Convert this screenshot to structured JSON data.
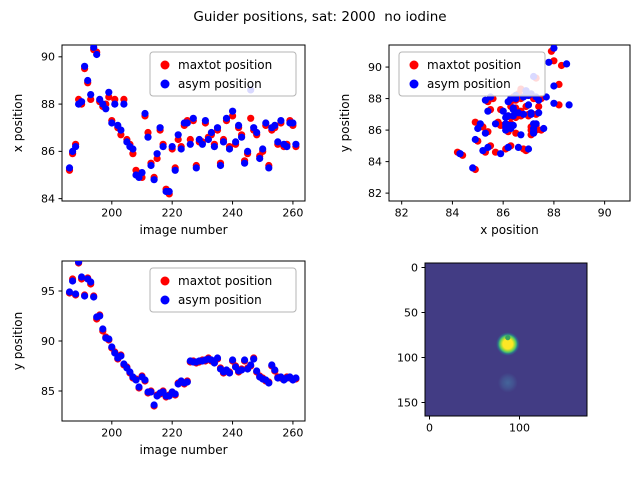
{
  "title": "Guider positions, sat: 2000  no iodine",
  "legend": {
    "maxtot_label": "maxtot position",
    "asym_label": "asym position"
  },
  "colors": {
    "maxtot": "#ff0000",
    "asym": "#0000ff",
    "frame": "#000000",
    "legend_border": "#b4b4b4",
    "image_bg": "#423c84",
    "blob_core": "#fde725",
    "blob_mid": "#a0da39",
    "blob_ring": "#4ac16d",
    "blob_halo": "#2a788e",
    "blob_faint": "#44699d",
    "blob_dot": "#2f9e62"
  },
  "chart_data": {
    "samples": {
      "img": [
        186,
        187,
        188,
        189,
        190,
        191,
        192,
        193,
        194,
        195,
        196,
        197,
        198,
        199,
        200,
        201,
        202,
        203,
        204,
        205,
        206,
        207,
        208,
        209,
        210,
        211,
        212,
        213,
        214,
        215,
        216,
        217,
        218,
        219,
        220,
        221,
        222,
        223,
        224,
        225,
        226,
        227,
        228,
        229,
        230,
        231,
        232,
        233,
        234,
        235,
        236,
        237,
        238,
        239,
        240,
        241,
        242,
        243,
        244,
        245,
        246,
        247,
        248,
        249,
        250,
        251,
        252,
        253,
        254,
        255,
        256,
        257,
        258,
        259,
        260,
        261
      ],
      "x_max": [
        85.2,
        85.9,
        86.3,
        88.2,
        88.0,
        89.5,
        88.9,
        88.2,
        90.3,
        90.2,
        88.1,
        87.9,
        88.0,
        88.3,
        87.3,
        88.2,
        87.0,
        86.7,
        88.2,
        86.5,
        86.3,
        85.9,
        85.2,
        85.0,
        84.9,
        87.5,
        86.8,
        85.5,
        84.9,
        85.7,
        86.9,
        86.3,
        84.4,
        84.2,
        86.1,
        85.3,
        86.5,
        86.2,
        87.1,
        87.3,
        86.5,
        87.3,
        85.4,
        86.4,
        86.4,
        87.2,
        86.6,
        86.7,
        86.3,
        86.9,
        85.5,
        86.5,
        87.3,
        86.2,
        87.5,
        86.3,
        87.0,
        86.7,
        85.6,
        85.9,
        87.4,
        86.9,
        86.7,
        85.8,
        86.0,
        87.1,
        85.4,
        86.9,
        87.0,
        86.3,
        87.2,
        86.2,
        86.3,
        87.3,
        87.1,
        86.2
      ],
      "x_asym": [
        85.3,
        86.0,
        86.2,
        88.0,
        88.1,
        89.6,
        89.0,
        88.4,
        90.4,
        90.1,
        88.2,
        88.0,
        87.8,
        88.5,
        87.2,
        88.0,
        87.1,
        86.9,
        88.0,
        86.4,
        86.2,
        86.1,
        85.0,
        84.9,
        85.1,
        87.6,
        86.6,
        85.4,
        84.8,
        85.9,
        87.0,
        86.2,
        84.3,
        84.3,
        86.2,
        85.2,
        86.7,
        86.1,
        87.2,
        87.2,
        86.3,
        87.4,
        85.3,
        86.5,
        86.3,
        87.3,
        86.5,
        86.8,
        86.2,
        87.0,
        85.4,
        86.4,
        87.4,
        86.1,
        87.7,
        86.4,
        87.1,
        86.6,
        85.5,
        86.0,
        88.6,
        87.0,
        86.8,
        85.7,
        86.1,
        87.2,
        85.3,
        87.0,
        87.1,
        86.4,
        87.3,
        86.3,
        86.2,
        87.2,
        87.2,
        86.3
      ],
      "y_max": [
        94.8,
        96.2,
        94.6,
        97.8,
        96.2,
        94.6,
        96.3,
        95.7,
        94.5,
        92.2,
        92.6,
        91.0,
        90.4,
        90.1,
        89.3,
        88.9,
        88.2,
        88.6,
        87.6,
        87.4,
        86.8,
        86.3,
        86.2,
        85.3,
        86.5,
        86.0,
        84.8,
        85.0,
        83.5,
        84.6,
        84.7,
        85.0,
        84.4,
        84.6,
        84.8,
        84.6,
        85.8,
        85.9,
        85.7,
        86.0,
        87.9,
        88.0,
        87.8,
        87.9,
        88.1,
        88.0,
        88.3,
        88.0,
        87.9,
        88.2,
        87.3,
        86.8,
        87.0,
        86.9,
        88.0,
        87.5,
        86.9,
        87.2,
        88.0,
        87.3,
        87.5,
        88.3,
        86.9,
        86.5,
        86.3,
        86.0,
        85.9,
        87.5,
        87.0,
        86.4,
        86.3,
        86.2,
        86.4,
        86.3,
        86.2,
        86.2
      ],
      "y_asym": [
        94.9,
        96.0,
        94.7,
        97.9,
        96.4,
        94.5,
        96.2,
        95.9,
        94.4,
        92.4,
        92.5,
        91.2,
        90.3,
        90.2,
        89.4,
        88.8,
        88.3,
        88.5,
        87.7,
        87.3,
        86.9,
        86.4,
        86.1,
        85.4,
        86.4,
        86.1,
        84.9,
        84.9,
        83.6,
        84.5,
        84.8,
        84.9,
        84.5,
        84.5,
        84.9,
        84.7,
        85.7,
        86.0,
        85.8,
        85.9,
        88.0,
        87.9,
        87.9,
        88.0,
        88.0,
        88.1,
        88.2,
        88.1,
        87.8,
        88.3,
        87.2,
        86.9,
        87.1,
        86.8,
        88.1,
        87.4,
        87.0,
        87.1,
        88.1,
        87.2,
        87.6,
        88.2,
        87.0,
        86.4,
        86.2,
        86.1,
        85.8,
        87.6,
        87.1,
        86.3,
        86.4,
        86.1,
        86.3,
        86.4,
        86.1,
        86.3
      ]
    },
    "plots": [
      {
        "id": "xpos_vs_img",
        "type": "scatter",
        "xlabel": "image number",
        "ylabel": "x position",
        "xlim": [
          183.5,
          264
        ],
        "ylim": [
          83.9,
          90.5
        ],
        "xticks": [
          200,
          220,
          240,
          260
        ],
        "yticks": [
          84,
          86,
          88,
          90
        ],
        "legend_pos": "upper-right",
        "series": [
          {
            "name": "maxtot position",
            "color": "#ff0000",
            "xkey": "img",
            "ykey": "x_max"
          },
          {
            "name": "asym position",
            "color": "#0000ff",
            "xkey": "img",
            "ykey": "x_asym"
          }
        ]
      },
      {
        "id": "ypos_vs_xpos",
        "type": "scatter",
        "xlabel": "x position",
        "ylabel": "y position",
        "xlim": [
          81.5,
          91.0
        ],
        "ylim": [
          81.5,
          91.4
        ],
        "xticks": [
          82,
          84,
          86,
          88,
          90
        ],
        "yticks": [
          82,
          84,
          86,
          88,
          90
        ],
        "legend_pos": "upper-left",
        "series": [
          {
            "name": "maxtot position",
            "color": "#ff0000",
            "xkey": "x_max",
            "ykey": "y_max"
          },
          {
            "name": "asym position",
            "color": "#0000ff",
            "xkey": "x_asym",
            "ykey": "y_asym"
          }
        ]
      },
      {
        "id": "ypos_vs_img",
        "type": "scatter",
        "xlabel": "image number",
        "ylabel": "y position",
        "xlim": [
          183.5,
          264
        ],
        "ylim": [
          82,
          98
        ],
        "xticks": [
          200,
          220,
          240,
          260
        ],
        "yticks": [
          85,
          90,
          95
        ],
        "legend_pos": "upper-right",
        "series": [
          {
            "name": "maxtot position",
            "color": "#ff0000",
            "xkey": "img",
            "ykey": "y_max"
          },
          {
            "name": "asym position",
            "color": "#0000ff",
            "xkey": "img",
            "ykey": "y_asym"
          }
        ]
      },
      {
        "id": "guider_image",
        "type": "heatmap",
        "xticks": [
          0,
          100
        ],
        "yticks": [
          0,
          50,
          100,
          150
        ],
        "extent": [
          -5,
          175,
          165,
          -5
        ],
        "blobs": [
          {
            "x": 87,
            "y": 85,
            "r": 13,
            "kind": "bright"
          },
          {
            "x": 87,
            "y": 78,
            "r": 2.6,
            "kind": "dot"
          },
          {
            "x": 87,
            "y": 128,
            "r": 11,
            "kind": "faint"
          }
        ]
      }
    ]
  }
}
